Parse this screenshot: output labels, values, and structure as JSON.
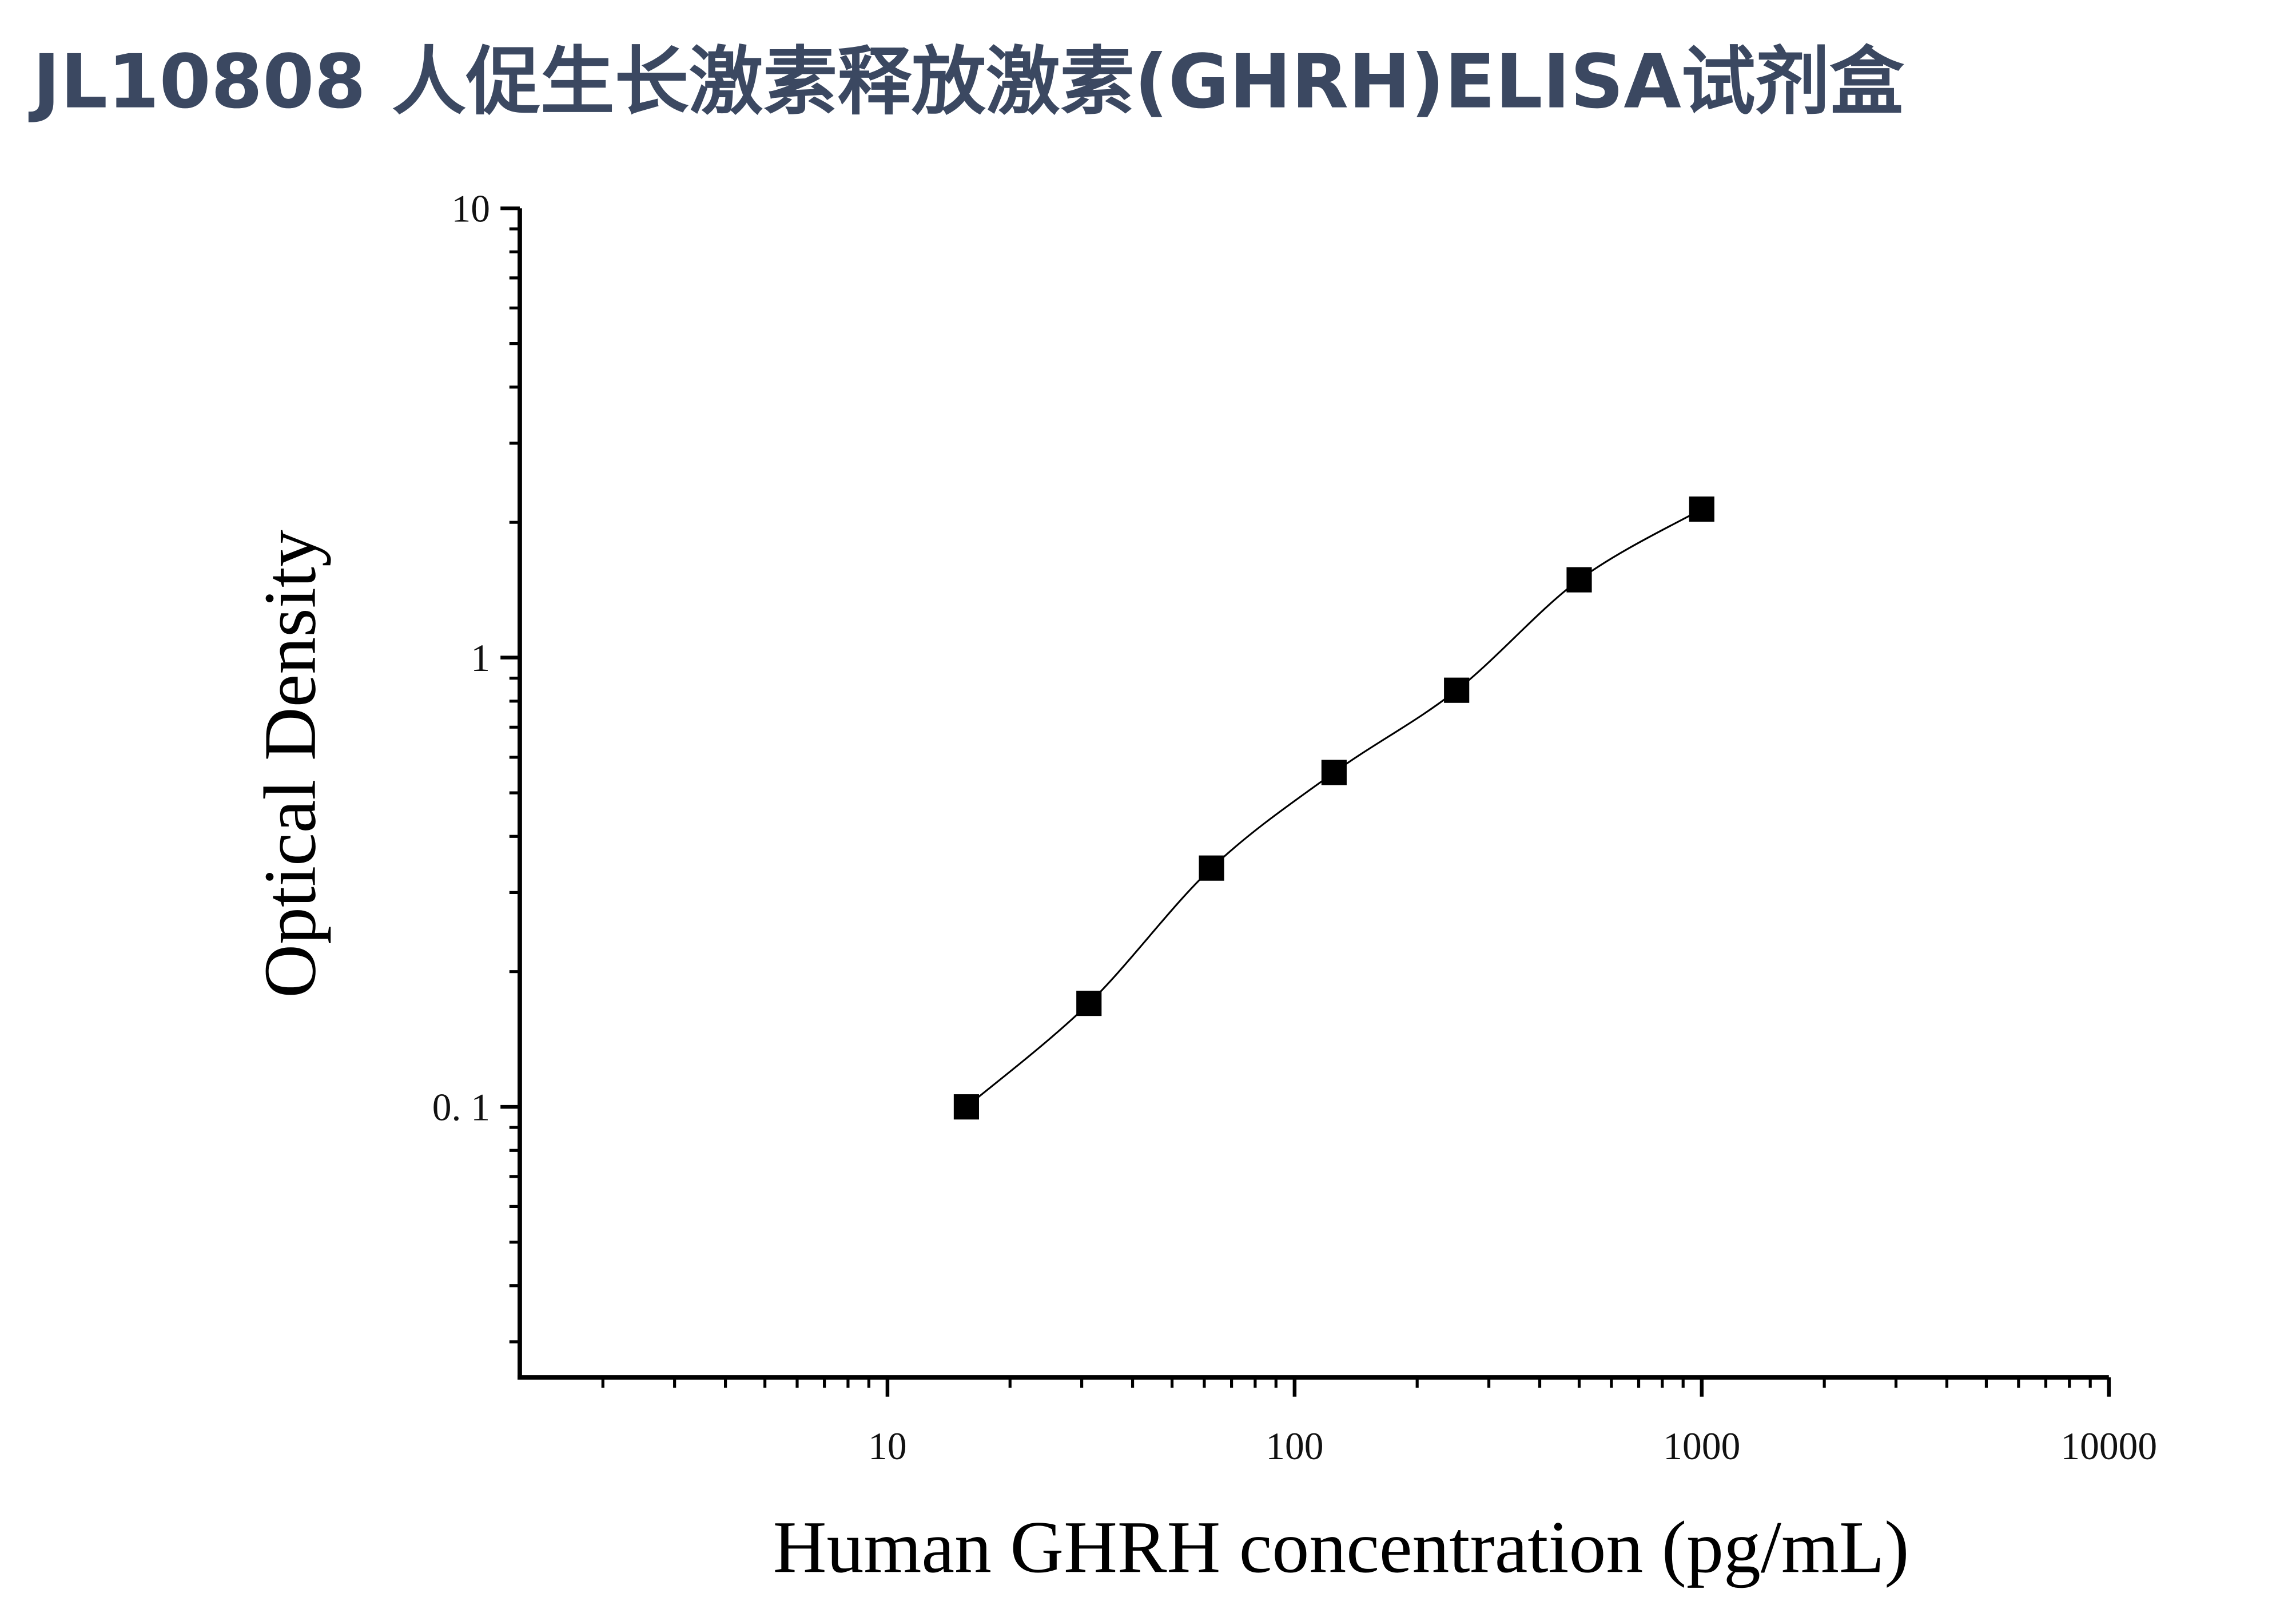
{
  "chart_data": {
    "type": "scatter",
    "title": "JL10808 人促生长激素释放激素(GHRH)ELISA试剂盒",
    "x_label": "Human GHRH concentration (pg/mL)",
    "y_label": "Optical Density",
    "x": [
      15.625,
      31.25,
      62.5,
      125,
      250,
      500,
      1000
    ],
    "values": [
      0.1,
      0.17,
      0.34,
      0.555,
      0.846,
      1.49,
      2.14
    ],
    "color": "#000000",
    "xlog": true,
    "ylog": true,
    "minor_ticks": true,
    "fit_line": true,
    "xlim": [
      1.25,
      10000
    ],
    "ylim": [
      0.025,
      10
    ],
    "xticks": [
      10,
      100,
      1000,
      10000
    ],
    "yticks": [
      {
        "value": 0.1,
        "label": "0. 1"
      },
      1,
      10
    ]
  }
}
